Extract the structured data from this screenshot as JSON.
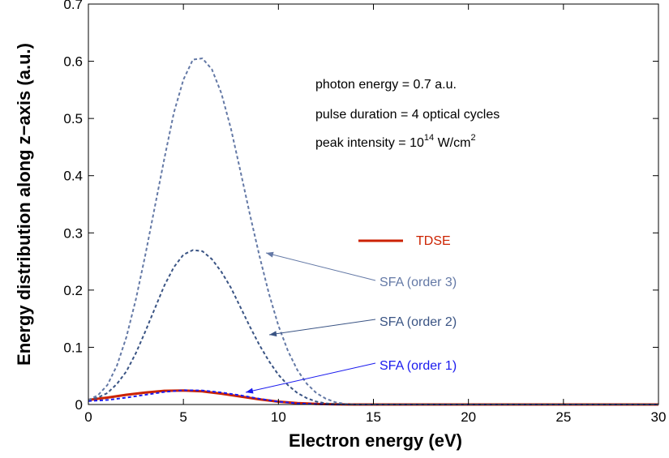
{
  "chart_data": {
    "type": "line",
    "xlabel": "Electron energy (eV)",
    "ylabel": "Energy distribution along z−axis (a.u.)",
    "xlim": [
      0,
      30
    ],
    "ylim": [
      0,
      0.7
    ],
    "xticks": [
      "0",
      "5",
      "10",
      "15",
      "20",
      "25",
      "30"
    ],
    "yticks": [
      "0",
      "0.1",
      "0.2",
      "0.3",
      "0.4",
      "0.5",
      "0.6",
      "0.7"
    ],
    "grid": false,
    "annotations": {
      "photon_energy": "photon energy = 0.7 a.u.",
      "pulse_duration": "pulse duration = 4 optical cycles",
      "peak_intensity_prefix": "peak intensity = 10",
      "peak_intensity_exponent": "14",
      "peak_intensity_unit": " W/cm",
      "peak_intensity_unit_exponent": "2"
    },
    "series": [
      {
        "name": "TDSE",
        "color": "#cc2200",
        "style": "solid",
        "x": [
          0,
          1,
          2,
          3,
          4,
          5,
          6,
          7,
          8,
          9,
          10,
          11,
          12,
          13,
          14,
          15,
          30
        ],
        "y": [
          0.008,
          0.012,
          0.017,
          0.021,
          0.024,
          0.0245,
          0.023,
          0.019,
          0.014,
          0.009,
          0.005,
          0.0025,
          0.001,
          0.0003,
          0,
          0,
          0
        ]
      },
      {
        "name": "SFA (order 1)",
        "color": "#1a1aee",
        "style": "dashed",
        "x": [
          0,
          1,
          2,
          3,
          4,
          5,
          6,
          7,
          8,
          9,
          10,
          11,
          12,
          13,
          14,
          15,
          30
        ],
        "y": [
          0.006,
          0.008,
          0.012,
          0.017,
          0.022,
          0.025,
          0.0245,
          0.021,
          0.016,
          0.01,
          0.005,
          0.002,
          0.0005,
          0,
          0,
          0,
          0
        ]
      },
      {
        "name": "SFA (order 2)",
        "color": "#3a5484",
        "style": "dashed",
        "x": [
          0,
          0.5,
          1,
          1.5,
          2,
          2.5,
          3,
          3.5,
          4,
          4.5,
          5,
          5.5,
          6,
          6.5,
          7,
          7.5,
          8,
          8.5,
          9,
          9.5,
          10,
          10.5,
          11,
          11.5,
          12,
          12.5,
          13,
          13.5,
          14,
          15,
          30
        ],
        "y": [
          0.008,
          0.012,
          0.02,
          0.036,
          0.058,
          0.09,
          0.128,
          0.168,
          0.208,
          0.24,
          0.262,
          0.27,
          0.268,
          0.254,
          0.232,
          0.204,
          0.17,
          0.136,
          0.104,
          0.076,
          0.052,
          0.034,
          0.02,
          0.011,
          0.005,
          0.002,
          0.0006,
          0.0001,
          0,
          0,
          0
        ]
      },
      {
        "name": "SFA (order 3)",
        "color": "#6479a6",
        "style": "dashed",
        "x": [
          0,
          0.5,
          1,
          1.5,
          2,
          2.5,
          3,
          3.5,
          4,
          4.5,
          5,
          5.5,
          6,
          6.5,
          7,
          7.5,
          8,
          8.5,
          9,
          9.5,
          10,
          10.5,
          11,
          11.5,
          12,
          12.5,
          13,
          13.5,
          14,
          15,
          30
        ],
        "y": [
          0.008,
          0.016,
          0.034,
          0.068,
          0.118,
          0.184,
          0.262,
          0.346,
          0.43,
          0.51,
          0.568,
          0.603,
          0.605,
          0.586,
          0.544,
          0.482,
          0.408,
          0.332,
          0.26,
          0.194,
          0.138,
          0.094,
          0.06,
          0.036,
          0.02,
          0.01,
          0.004,
          0.0012,
          0,
          0,
          0
        ]
      }
    ]
  }
}
